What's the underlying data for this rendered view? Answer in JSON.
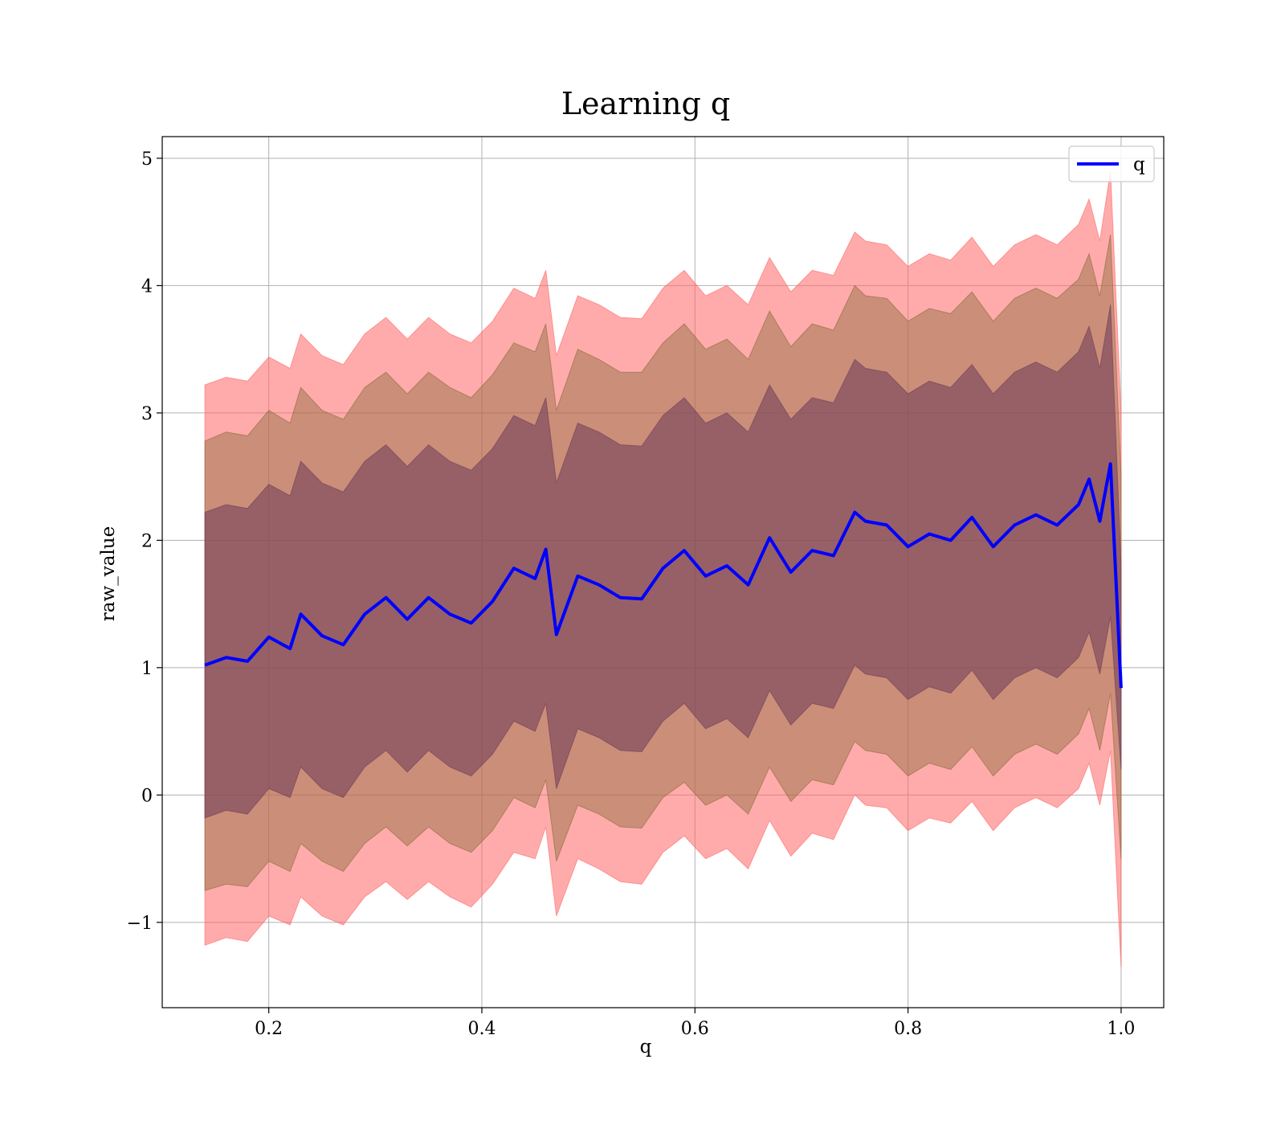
{
  "chart_data": {
    "type": "area",
    "title": "Learning q",
    "xlabel": "q",
    "ylabel": "raw_value",
    "xlim": [
      0.1,
      1.04
    ],
    "ylim": [
      -1.67,
      5.17
    ],
    "xticks": [
      0.2,
      0.4,
      0.6,
      0.8,
      1.0
    ],
    "xtick_labels": [
      "0.2",
      "0.4",
      "0.6",
      "0.8",
      "1.0"
    ],
    "yticks": [
      -1,
      0,
      1,
      2,
      3,
      4,
      5
    ],
    "ytick_labels": [
      "−1",
      "0",
      "1",
      "2",
      "3",
      "4",
      "5"
    ],
    "grid": true,
    "legend": {
      "position": "top-right",
      "entries": [
        "q"
      ]
    },
    "x": [
      0.14,
      0.16,
      0.18,
      0.2,
      0.22,
      0.23,
      0.25,
      0.27,
      0.29,
      0.31,
      0.33,
      0.35,
      0.37,
      0.39,
      0.41,
      0.43,
      0.45,
      0.46,
      0.47,
      0.49,
      0.51,
      0.53,
      0.55,
      0.57,
      0.59,
      0.61,
      0.63,
      0.65,
      0.67,
      0.69,
      0.71,
      0.73,
      0.75,
      0.76,
      0.78,
      0.8,
      0.82,
      0.84,
      0.86,
      0.88,
      0.9,
      0.92,
      0.94,
      0.96,
      0.97,
      0.98,
      0.99,
      1.0
    ],
    "series": [
      {
        "name": "q",
        "color": "#0000ff",
        "values": [
          1.02,
          1.08,
          1.05,
          1.24,
          1.15,
          1.42,
          1.25,
          1.18,
          1.42,
          1.55,
          1.38,
          1.55,
          1.42,
          1.35,
          1.52,
          1.78,
          1.7,
          1.93,
          1.26,
          1.72,
          1.65,
          1.55,
          1.54,
          1.78,
          1.92,
          1.72,
          1.8,
          1.65,
          2.02,
          1.75,
          1.92,
          1.88,
          2.22,
          2.15,
          2.12,
          1.95,
          2.05,
          2.0,
          2.18,
          1.95,
          2.12,
          2.2,
          2.12,
          2.28,
          2.48,
          2.15,
          2.6,
          0.84
        ]
      }
    ],
    "bands": [
      {
        "name": "outer",
        "color": "#ff6666",
        "opacity": 0.55,
        "lower": [
          -1.18,
          -1.12,
          -1.15,
          -0.95,
          -1.02,
          -0.8,
          -0.95,
          -1.02,
          -0.8,
          -0.68,
          -0.82,
          -0.68,
          -0.8,
          -0.88,
          -0.7,
          -0.45,
          -0.5,
          -0.25,
          -0.95,
          -0.5,
          -0.58,
          -0.68,
          -0.7,
          -0.45,
          -0.32,
          -0.5,
          -0.42,
          -0.58,
          -0.2,
          -0.48,
          -0.3,
          -0.35,
          0.0,
          -0.08,
          -0.1,
          -0.28,
          -0.18,
          -0.22,
          -0.05,
          -0.28,
          -0.1,
          -0.02,
          -0.1,
          0.05,
          0.25,
          -0.08,
          0.35,
          -1.35
        ],
        "upper": [
          3.22,
          3.28,
          3.25,
          3.44,
          3.35,
          3.62,
          3.45,
          3.38,
          3.62,
          3.75,
          3.58,
          3.75,
          3.62,
          3.55,
          3.72,
          3.98,
          3.9,
          4.12,
          3.45,
          3.92,
          3.85,
          3.75,
          3.74,
          3.98,
          4.12,
          3.92,
          4.0,
          3.85,
          4.22,
          3.95,
          4.12,
          4.08,
          4.42,
          4.35,
          4.32,
          4.15,
          4.25,
          4.2,
          4.38,
          4.15,
          4.32,
          4.4,
          4.32,
          4.48,
          4.68,
          4.35,
          4.9,
          3.0
        ]
      },
      {
        "name": "middle",
        "color": "#8b6a3a",
        "opacity": 0.45,
        "lower": [
          -0.75,
          -0.7,
          -0.72,
          -0.52,
          -0.6,
          -0.38,
          -0.52,
          -0.6,
          -0.38,
          -0.25,
          -0.4,
          -0.25,
          -0.38,
          -0.45,
          -0.28,
          -0.02,
          -0.1,
          0.12,
          -0.52,
          -0.08,
          -0.15,
          -0.25,
          -0.26,
          -0.02,
          0.1,
          -0.08,
          0.0,
          -0.15,
          0.22,
          -0.05,
          0.12,
          0.08,
          0.42,
          0.35,
          0.32,
          0.15,
          0.25,
          0.2,
          0.38,
          0.15,
          0.32,
          0.4,
          0.32,
          0.48,
          0.68,
          0.35,
          0.8,
          -0.5
        ],
        "upper": [
          2.78,
          2.85,
          2.82,
          3.02,
          2.92,
          3.2,
          3.02,
          2.95,
          3.2,
          3.32,
          3.15,
          3.32,
          3.2,
          3.12,
          3.3,
          3.55,
          3.48,
          3.7,
          3.02,
          3.5,
          3.42,
          3.32,
          3.32,
          3.55,
          3.7,
          3.5,
          3.58,
          3.42,
          3.8,
          3.52,
          3.7,
          3.65,
          4.0,
          3.92,
          3.9,
          3.72,
          3.82,
          3.78,
          3.95,
          3.72,
          3.9,
          3.98,
          3.9,
          4.05,
          4.25,
          3.92,
          4.4,
          2.5
        ]
      },
      {
        "name": "inner",
        "color": "#6e3a5a",
        "opacity": 0.55,
        "lower": [
          -0.18,
          -0.12,
          -0.15,
          0.05,
          -0.02,
          0.22,
          0.05,
          -0.02,
          0.22,
          0.35,
          0.18,
          0.35,
          0.22,
          0.15,
          0.32,
          0.58,
          0.5,
          0.72,
          0.05,
          0.52,
          0.45,
          0.35,
          0.34,
          0.58,
          0.72,
          0.52,
          0.6,
          0.45,
          0.82,
          0.55,
          0.72,
          0.68,
          1.02,
          0.95,
          0.92,
          0.75,
          0.85,
          0.8,
          0.98,
          0.75,
          0.92,
          1.0,
          0.92,
          1.08,
          1.28,
          0.95,
          1.4,
          0.2
        ],
        "upper": [
          2.22,
          2.28,
          2.25,
          2.44,
          2.35,
          2.62,
          2.45,
          2.38,
          2.62,
          2.75,
          2.58,
          2.75,
          2.62,
          2.55,
          2.72,
          2.98,
          2.9,
          3.12,
          2.45,
          2.92,
          2.85,
          2.75,
          2.74,
          2.98,
          3.12,
          2.92,
          3.0,
          2.85,
          3.22,
          2.95,
          3.12,
          3.08,
          3.42,
          3.35,
          3.32,
          3.15,
          3.25,
          3.2,
          3.38,
          3.15,
          3.32,
          3.4,
          3.32,
          3.48,
          3.68,
          3.35,
          3.85,
          1.8
        ]
      }
    ]
  }
}
